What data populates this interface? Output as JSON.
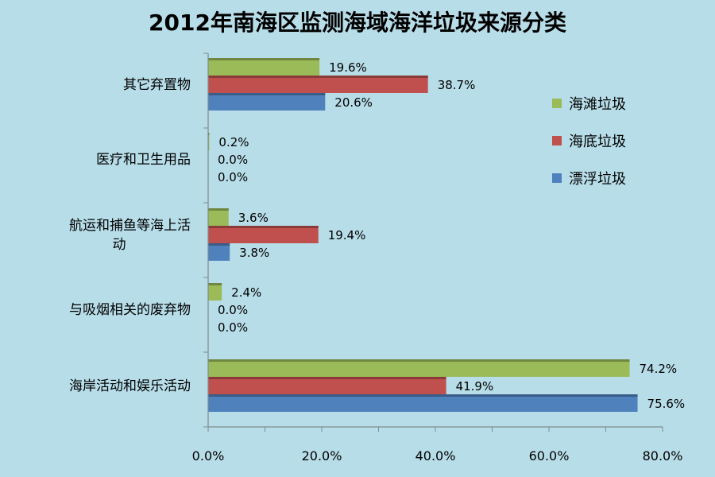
{
  "chart_data": {
    "type": "bar",
    "orientation": "horizontal",
    "title": "2012年南海区监测海域海洋垃圾来源分类",
    "categories": [
      [
        "其它弃置物"
      ],
      [
        "医疗和卫生用品"
      ],
      [
        "航运和捕鱼等海上活",
        "动"
      ],
      [
        "与吸烟相关的废弃物"
      ],
      [
        "海岸活动和娱乐活动"
      ]
    ],
    "series": [
      {
        "name": "海滩垃圾",
        "color": "#9bbb59",
        "values": [
          19.6,
          0.2,
          3.6,
          2.4,
          74.2
        ],
        "labels": [
          "19.6%",
          "0.2%",
          "3.6%",
          "2.4%",
          "74.2%"
        ]
      },
      {
        "name": "海底垃圾",
        "color": "#c0504d",
        "values": [
          38.7,
          0.0,
          19.4,
          0.0,
          41.9
        ],
        "labels": [
          "38.7%",
          "0.0%",
          "19.4%",
          "0.0%",
          "41.9%"
        ]
      },
      {
        "name": "漂浮垃圾",
        "color": "#4f81bd",
        "values": [
          20.6,
          0.0,
          3.8,
          0.0,
          75.6
        ],
        "labels": [
          "20.6%",
          "0.0%",
          "3.8%",
          "0.0%",
          "75.6%"
        ]
      }
    ],
    "xlim": [
      0,
      80
    ],
    "xticks": [
      0,
      20,
      40,
      60,
      80
    ],
    "xtick_labels": [
      "0.0%",
      "20.0%",
      "40.0%",
      "60.0%",
      "80.0%"
    ],
    "grid": false,
    "legend_position": "right",
    "background": "#b7dde8"
  }
}
